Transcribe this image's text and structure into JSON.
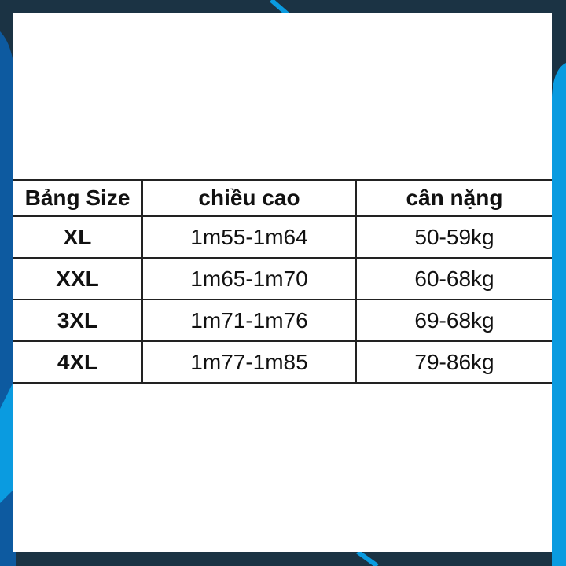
{
  "colors": {
    "background": "#1b3344",
    "accent": "#0a9be0",
    "panel": "#ffffff"
  },
  "table": {
    "headers": [
      "Bảng Size",
      "chiều cao",
      "cân nặng"
    ],
    "rows": [
      [
        "XL",
        "1m55-1m64",
        "50-59kg"
      ],
      [
        "XXL",
        "1m65-1m70",
        "60-68kg"
      ],
      [
        "3XL",
        "1m71-1m76",
        "69-68kg"
      ],
      [
        "4XL",
        "1m77-1m85",
        "79-86kg"
      ]
    ]
  }
}
